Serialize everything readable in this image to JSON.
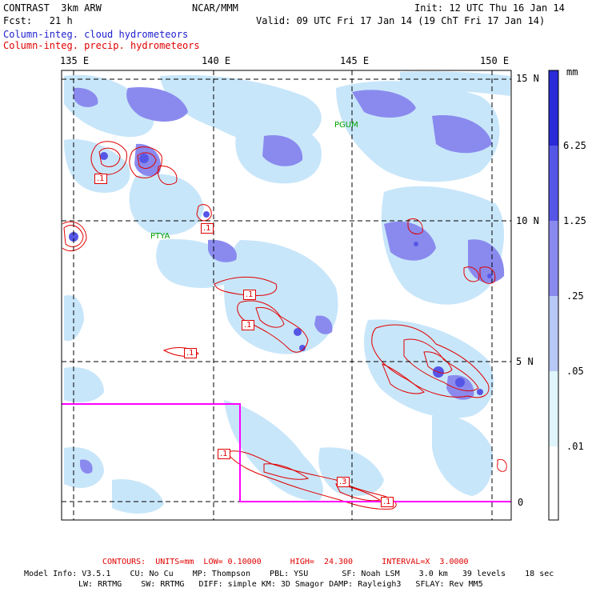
{
  "header": {
    "model_title": "CONTRAST  3km ARW",
    "org": "NCAR/MMM",
    "init": "Init: 12 UTC Thu 16 Jan 14",
    "fcst": "Fcst:   21 h",
    "valid": "Valid: 09 UTC Fri 17 Jan 14 (19 ChT Fri 17 Jan 14)",
    "field1": "Column-integ. cloud hydrometeors",
    "field2": "Column-integ. precip. hydrometeors"
  },
  "axes": {
    "lon_labels": [
      "135 E",
      "140 E",
      "145 E",
      "150 E"
    ],
    "lat_labels": [
      "15 N",
      "10 N",
      "5 N",
      "0"
    ]
  },
  "places": [
    "PGUM",
    "PTYA"
  ],
  "contour_labels": [
    ".1",
    ".1",
    ".1",
    ".1",
    ".1",
    ".1",
    ".3",
    ".1"
  ],
  "colorbar": {
    "unit": "mm",
    "levels": [
      "6.25",
      "1.25",
      ".25",
      ".05",
      ".01"
    ],
    "colors": [
      "#2a2ad8",
      "#5656e6",
      "#8a8aee",
      "#b8c8f6",
      "#dff4fb",
      "#ffffff"
    ]
  },
  "footer": {
    "contours": "CONTOURS:  UNITS=mm  LOW= 0.10000      HIGH=  24.300      INTERVAL=X  3.0000",
    "info1": "Model Info: V3.5.1    CU: No Cu    MP: Thompson    PBL: YSU       SF: Noah LSM    3.0 km   39 levels    18 sec",
    "info2": "LW: RRTMG    SW: RRTMG   DIFF: simple KM: 3D Smagor DAMP: Rayleigh3   SFLAY: Rev MM5"
  },
  "colors": {
    "contour": "#e00000",
    "boundary": "#ff00ff",
    "cloud_light": "#c8e6fa",
    "cloud_mid": "#8a8aee",
    "cloud_dark": "#5656e6"
  }
}
